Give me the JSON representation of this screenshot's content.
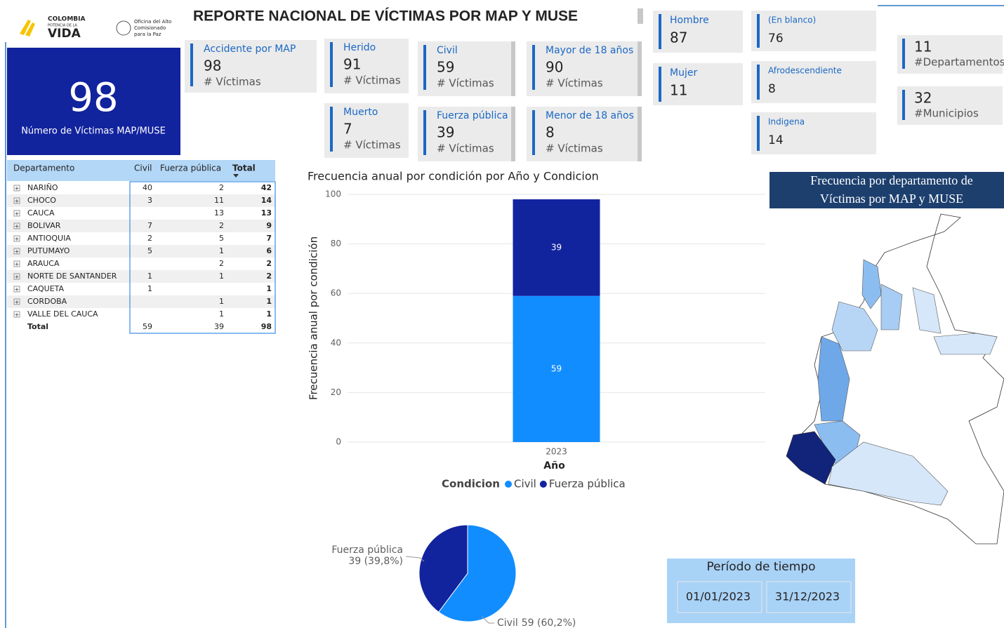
{
  "header": {
    "title": "REPORTE NACIONAL DE VÍCTIMAS POR MAP Y MUSE",
    "logo_1": [
      "COLOMBIA",
      "POTENCIA DE LA",
      "VIDA"
    ],
    "logo_2": [
      "Oficina del Alto",
      "Comisionado",
      "para la Paz"
    ]
  },
  "main_card": {
    "value": 98,
    "label": "Número de Víctimas MAP/MUSE"
  },
  "cards": [
    {
      "title": "Accidente por MAP",
      "value": 98,
      "unit": "# Víctimas"
    },
    {
      "title": "Herido",
      "value": 91,
      "unit": "# Víctimas"
    },
    {
      "title": "Muerto",
      "value": 7,
      "unit": "# Víctimas"
    },
    {
      "title": "Civil",
      "value": 59,
      "unit": "# Víctimas"
    },
    {
      "title": "Fuerza pública",
      "value": 39,
      "unit": "# Víctimas"
    },
    {
      "title": "Mayor de 18 años",
      "value": 90,
      "unit": "# Víctimas"
    },
    {
      "title": "Menor de 18 años",
      "value": 8,
      "unit": "# Víctimas"
    }
  ],
  "simple_cards": [
    {
      "title": "Hombre",
      "value": 87
    },
    {
      "title": "Mujer",
      "value": 11
    },
    {
      "title": "(En blanco)",
      "value": 76
    },
    {
      "title": "Afrodescendiente",
      "value": 8
    },
    {
      "title": "Indigena",
      "value": 14
    }
  ],
  "count_cards": [
    {
      "value": 11,
      "label": "#Departamentos"
    },
    {
      "value": 32,
      "label": "#Municipios"
    }
  ],
  "table": {
    "columns": [
      "Departamento",
      "Civil",
      "Fuerza pública",
      "Total"
    ],
    "rows": [
      [
        "NARIÑO",
        40,
        2,
        42
      ],
      [
        "CHOCO",
        3,
        11,
        14
      ],
      [
        "CAUCA",
        null,
        13,
        13
      ],
      [
        "BOLIVAR",
        7,
        2,
        9
      ],
      [
        "ANTIOQUIA",
        2,
        5,
        7
      ],
      [
        "PUTUMAYO",
        5,
        1,
        6
      ],
      [
        "ARAUCA",
        null,
        2,
        2
      ],
      [
        "NORTE DE SANTANDER",
        1,
        1,
        2
      ],
      [
        "CAQUETA",
        1,
        null,
        1
      ],
      [
        "CORDOBA",
        null,
        1,
        1
      ],
      [
        "VALLE DEL CAUCA",
        null,
        1,
        1
      ]
    ],
    "total": [
      "Total",
      59,
      39,
      98
    ]
  },
  "chart_data": [
    {
      "type": "bar",
      "title": "Frecuencia anual por condición por Año y Condicion",
      "x_label": "Año",
      "y_label": "Frecuencia anual por condición",
      "legend_title": "Condicion",
      "categories": [
        "2023"
      ],
      "series": [
        {
          "name": "Civil",
          "color": "#118dff",
          "values": [
            59
          ]
        },
        {
          "name": "Fuerza pública",
          "color": "#12239e",
          "values": [
            39
          ]
        }
      ],
      "stacked": true,
      "ylim": [
        0,
        100
      ],
      "yticks": [
        0,
        20,
        40,
        60,
        80,
        100
      ],
      "grid": true
    },
    {
      "type": "pie",
      "categories": [
        "Fuerza pública",
        "Civil"
      ],
      "values": [
        39,
        59
      ],
      "value_labels": [
        "39 (39,8%)",
        "59 (60,2%)"
      ],
      "colors": [
        "#12239e",
        "#118dff"
      ]
    }
  ],
  "map": {
    "title": [
      "Frecuencia por departamento de",
      "Víctimas por MAP y MUSE"
    ]
  },
  "period": {
    "title": "Período de tiempo",
    "start": "01/01/2023",
    "end": "31/12/2023"
  }
}
